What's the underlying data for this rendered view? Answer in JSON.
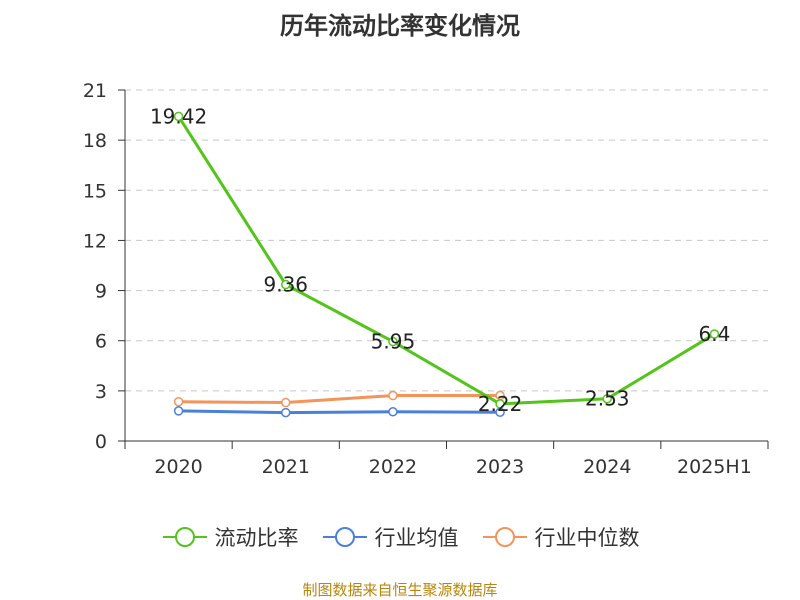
{
  "source_text": "制图数据来自恒生聚源数据库",
  "chart_data": {
    "type": "line",
    "title": "历年流动比率变化情况",
    "categories": [
      "2020",
      "2021",
      "2022",
      "2023",
      "2024",
      "2025H1"
    ],
    "ylim": [
      0,
      21
    ],
    "yticks": [
      0,
      3,
      6,
      9,
      12,
      15,
      18,
      21
    ],
    "grid": true,
    "legend_position": "bottom",
    "series": [
      {
        "name": "流动比率",
        "color": "#52c41a",
        "values": [
          19.42,
          9.36,
          5.95,
          2.22,
          2.53,
          6.4
        ],
        "labels": [
          "19.42",
          "9.36",
          "5.95",
          "2.22",
          "2.53",
          "6.4"
        ]
      },
      {
        "name": "行业均值",
        "color": "#4a7fdc",
        "values": [
          1.8,
          1.7,
          1.75,
          1.72,
          null,
          null
        ]
      },
      {
        "name": "行业中位数",
        "color": "#f4935a",
        "values": [
          2.35,
          2.3,
          2.72,
          2.72,
          null,
          null
        ]
      }
    ]
  }
}
